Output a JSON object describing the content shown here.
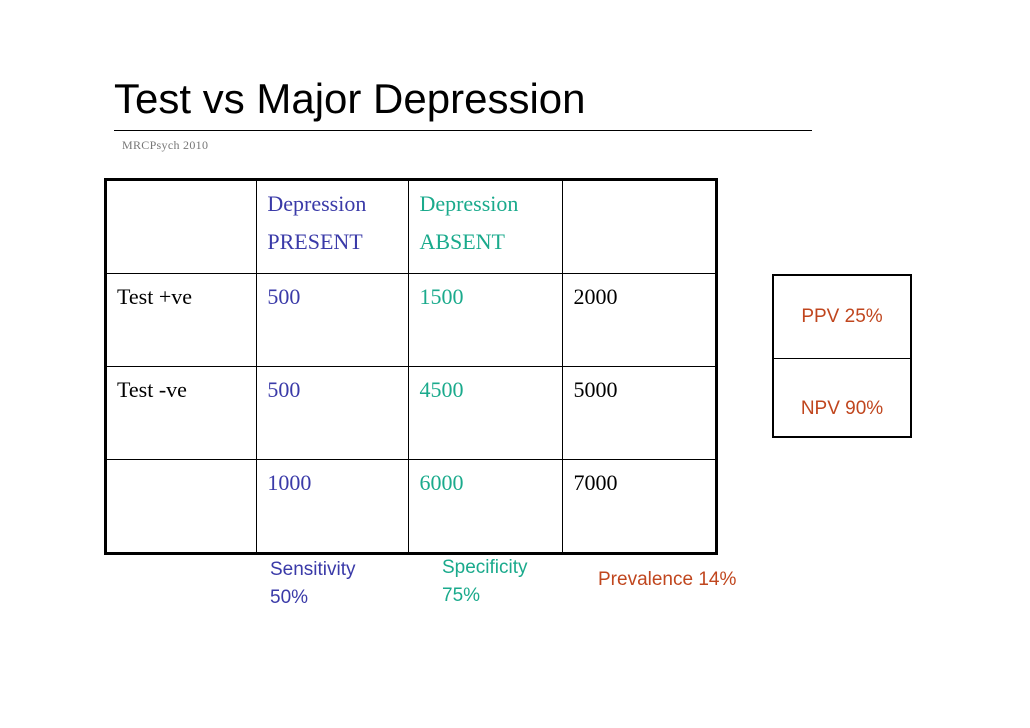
{
  "slide": {
    "title": "Test vs Major Depression",
    "subtitle": "MRCPsych 2010"
  },
  "table": {
    "header": {
      "present_line1": "Depression",
      "present_line2": "PRESENT",
      "absent_line1": "Depression",
      "absent_line2": "ABSENT"
    },
    "rows": [
      {
        "label": "Test +ve",
        "present": "500",
        "absent": "1500",
        "total": "2000"
      },
      {
        "label": "Test -ve",
        "present": "500",
        "absent": "4500",
        "total": "5000"
      },
      {
        "label": "",
        "present": "1000",
        "absent": "6000",
        "total": "7000"
      }
    ]
  },
  "stats": {
    "sensitivity_label": "Sensitivity",
    "sensitivity_value": "50%",
    "specificity_label": "Specificity",
    "specificity_value": "75%",
    "prevalence": "Prevalence 14%",
    "ppv": "PPV 25%",
    "npv": "NPV 90%"
  },
  "colors": {
    "present": "#3a3aa8",
    "absent": "#1aaa8c",
    "prevalence": "#c0461e"
  }
}
